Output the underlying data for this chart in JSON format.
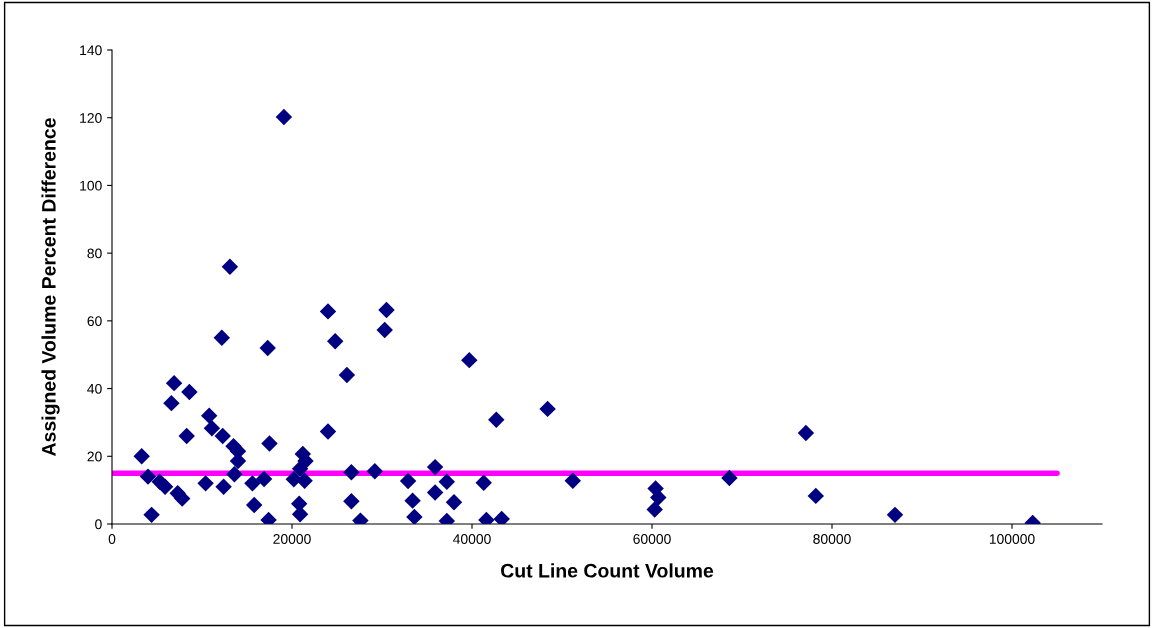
{
  "chart_data": {
    "type": "scatter",
    "xlabel": "Cut Line Count Volume",
    "ylabel": "Assigned Volume Percent Difference",
    "series": [
      {
        "color": "#000080",
        "marker": "diamond",
        "x": [
          3300,
          4000,
          4400,
          5300,
          5900,
          6600,
          6900,
          7300,
          7800,
          8600,
          8300,
          10400,
          10800,
          11100,
          12400,
          12200,
          12300,
          13100,
          13500,
          13600,
          14000,
          14000,
          15800,
          15600,
          16900,
          17300,
          17500,
          17400,
          19100,
          20200,
          20900,
          21200,
          21500,
          21400,
          20800,
          20900,
          24000,
          24000,
          24800,
          26100,
          26600,
          26600,
          27600,
          29200,
          30300,
          30500,
          32900,
          33400,
          33600,
          35900,
          35900,
          37200,
          37200,
          38000,
          39700,
          41300,
          41600,
          42700,
          43300,
          48400,
          51200,
          60400,
          60700,
          60300,
          68600,
          77100,
          78200,
          87000,
          102300
        ],
        "values": [
          20,
          14,
          2.7,
          12.5,
          11,
          35.7,
          41.6,
          9.1,
          7.5,
          39,
          26,
          12,
          32,
          28.3,
          11,
          55,
          26,
          76,
          23,
          14.7,
          21.5,
          18.6,
          5.6,
          12,
          13.3,
          52,
          23.8,
          1.2,
          120.2,
          13.2,
          16.3,
          20.7,
          18.6,
          12.8,
          6,
          2.9,
          62.8,
          27.3,
          54,
          44,
          15.3,
          6.7,
          1,
          15.6,
          57.3,
          63.2,
          12.7,
          6.9,
          2.1,
          16.8,
          9.3,
          12.5,
          0.9,
          6.4,
          48.4,
          12.2,
          1.2,
          30.8,
          1.5,
          34,
          12.8,
          10.5,
          7.8,
          4.3,
          13.6,
          26.9,
          8.3,
          2.7,
          0.3
        ]
      },
      {
        "color": "#ff00ff",
        "type": "line",
        "marker": "none",
        "x": [
          0,
          105000
        ],
        "values": [
          15,
          15
        ]
      }
    ],
    "xlim": [
      0,
      110000
    ],
    "xticks": [
      0,
      20000,
      40000,
      60000,
      80000,
      100000
    ],
    "ylim": [
      0,
      140
    ],
    "yticks": [
      0,
      20,
      40,
      60,
      80,
      100,
      120,
      140
    ],
    "grid": false,
    "legend": false
  }
}
